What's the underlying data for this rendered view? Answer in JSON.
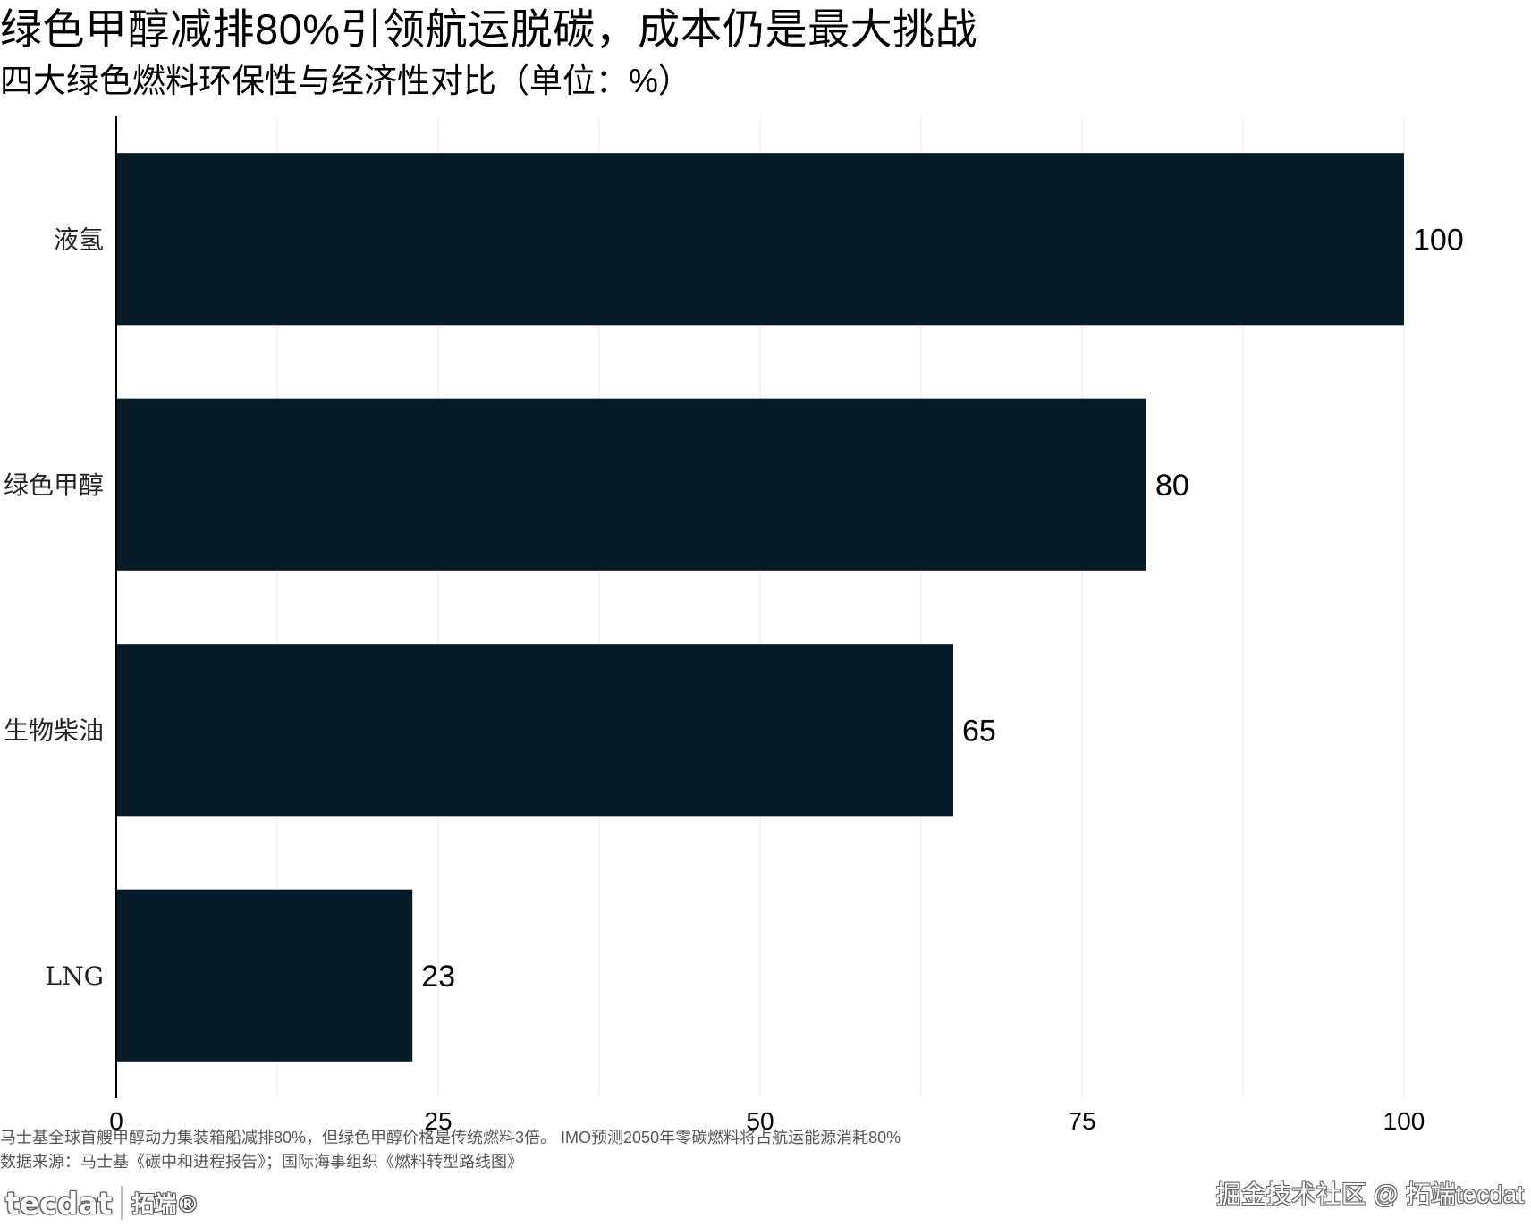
{
  "title": "绿色甲醇减排80%引领航运脱碳，成本仍是最大挑战",
  "subtitle": "四大绿色燃料环保性与经济性对比（单位：%）",
  "chart_data": {
    "type": "bar",
    "orientation": "horizontal",
    "categories": [
      "液氢",
      "绿色甲醇",
      "生物柴油",
      "LNG"
    ],
    "values": [
      100,
      80,
      65,
      23
    ],
    "data_labels": [
      "100",
      "80",
      "65",
      "23"
    ],
    "xlim": [
      0,
      100
    ],
    "x_ticks": [
      0,
      25,
      50,
      75,
      100
    ],
    "x_tick_labels": [
      "0",
      "25",
      "50",
      "75",
      "100"
    ],
    "bar_color": "#061a28",
    "grid": "vertical",
    "legend": "none"
  },
  "note": "马士基全球首艘甲醇动力集装箱船减排80%，但绿色甲醇价格是传统燃料3倍。 IMO预测2050年零碳燃料将占航运能源消耗80%",
  "source": "数据来源：马士基《碳中和进程报告》；国际海事组织《燃料转型路线图》",
  "logo": {
    "mark": "tecdat",
    "cn": "拓端®"
  },
  "watermark": "掘金技术社区 @ 拓端tecdat"
}
